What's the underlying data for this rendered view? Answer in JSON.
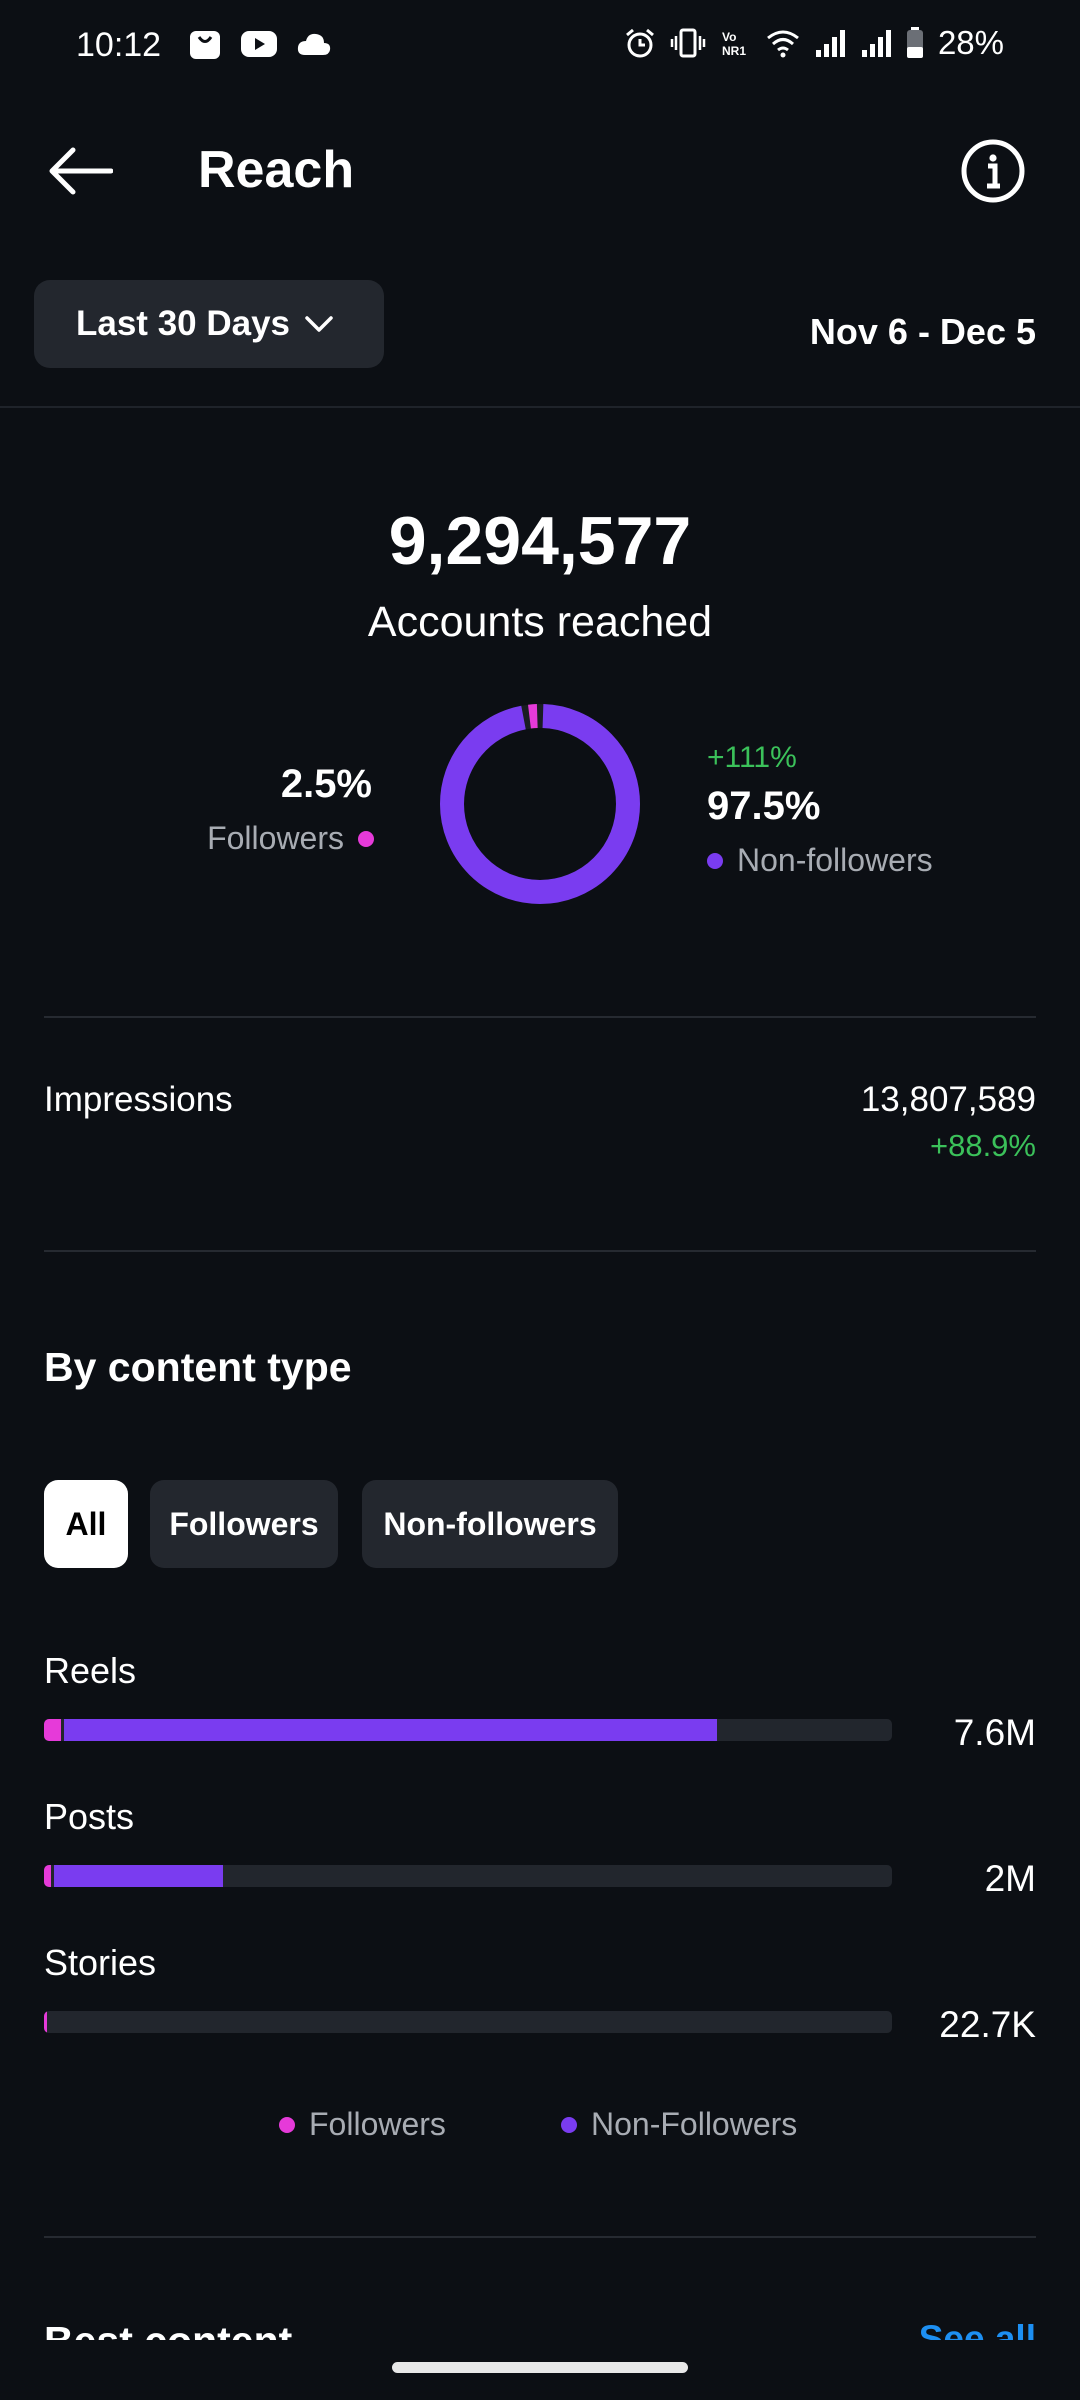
{
  "status_bar": {
    "time": "10:12",
    "battery": "28%",
    "icons": [
      "bag-icon",
      "youtube-icon",
      "cloud-icon",
      "alarm-icon",
      "vibrate-icon",
      "volte-icon",
      "wifi-icon",
      "signal-icon",
      "signal-icon",
      "battery-icon"
    ]
  },
  "header": {
    "title": "Reach",
    "back_icon": "arrow-left-icon",
    "info_icon": "info-icon"
  },
  "range": {
    "selected": "Last 30 Days",
    "dates": "Nov 6 - Dec 5"
  },
  "summary": {
    "total": "9,294,577",
    "label": "Accounts reached",
    "followers_pct": "2.5%",
    "followers_label": "Followers",
    "nonfollowers_change": "+111%",
    "nonfollowers_pct": "97.5%",
    "nonfollowers_label": "Non-followers",
    "followers_share": 0.025,
    "nonfollowers_share": 0.975
  },
  "impressions": {
    "label": "Impressions",
    "value": "13,807,589",
    "change": "+88.9%"
  },
  "content_type": {
    "title": "By content type",
    "filters": [
      "All",
      "Followers",
      "Non-followers"
    ],
    "active_filter": "All",
    "rows": [
      {
        "label": "Reels",
        "value": "7.6M",
        "followers_fraction": 0.02,
        "nonfollowers_fraction": 0.77
      },
      {
        "label": "Posts",
        "value": "2M",
        "followers_fraction": 0.008,
        "nonfollowers_fraction": 0.2
      },
      {
        "label": "Stories",
        "value": "22.7K",
        "followers_fraction": 0.003,
        "nonfollowers_fraction": 0
      }
    ],
    "legend": [
      "Followers",
      "Non-Followers"
    ]
  },
  "colors": {
    "followers": "#e63ad9",
    "nonfollowers": "#7a3cf0",
    "positive": "#3bc15a",
    "link": "#1d8ff2"
  },
  "next_section": {
    "title": "Best content",
    "action": "See all"
  }
}
